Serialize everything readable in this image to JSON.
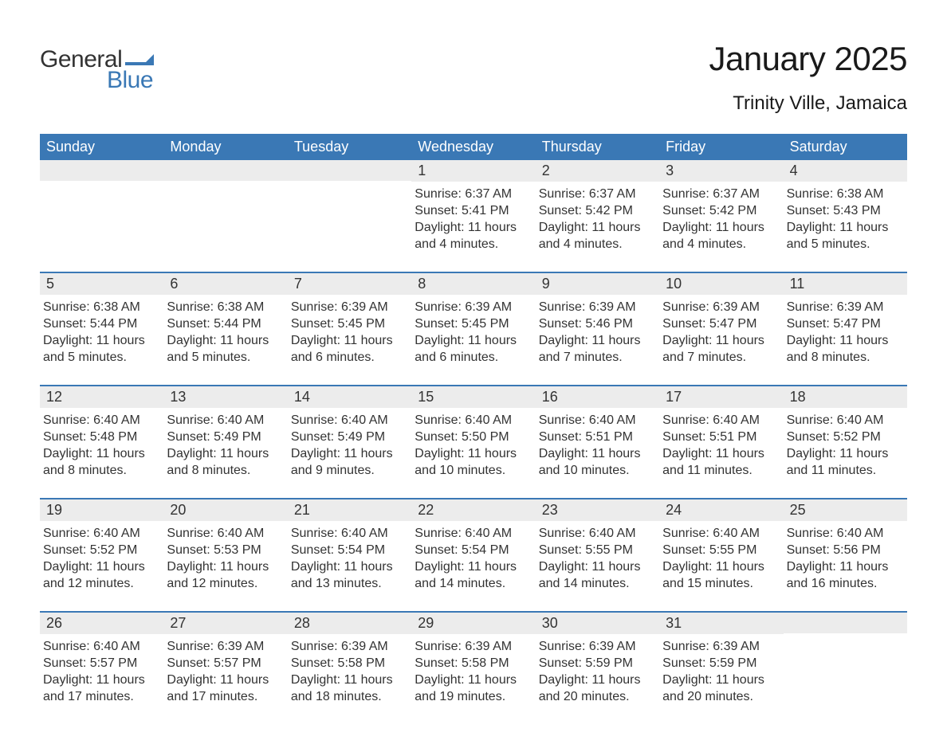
{
  "logo": {
    "text1": "General",
    "text2": "Blue",
    "flag_color": "#3a78b5"
  },
  "title": "January 2025",
  "subtitle": "Trinity Ville, Jamaica",
  "colors": {
    "header_bg": "#3a78b5",
    "header_text": "#ffffff",
    "daynum_bg": "#ececec",
    "body_text": "#333333",
    "week_divider": "#3a78b5",
    "page_bg": "#ffffff"
  },
  "fonts": {
    "title_size_pt": 32,
    "subtitle_size_pt": 18,
    "weekday_size_pt": 14,
    "daynum_size_pt": 14,
    "body_size_pt": 12
  },
  "weekdays": [
    "Sunday",
    "Monday",
    "Tuesday",
    "Wednesday",
    "Thursday",
    "Friday",
    "Saturday"
  ],
  "weeks": [
    [
      {
        "day": "",
        "sunrise": "",
        "sunset": "",
        "daylight": ""
      },
      {
        "day": "",
        "sunrise": "",
        "sunset": "",
        "daylight": ""
      },
      {
        "day": "",
        "sunrise": "",
        "sunset": "",
        "daylight": ""
      },
      {
        "day": "1",
        "sunrise": "Sunrise: 6:37 AM",
        "sunset": "Sunset: 5:41 PM",
        "daylight": "Daylight: 11 hours and 4 minutes."
      },
      {
        "day": "2",
        "sunrise": "Sunrise: 6:37 AM",
        "sunset": "Sunset: 5:42 PM",
        "daylight": "Daylight: 11 hours and 4 minutes."
      },
      {
        "day": "3",
        "sunrise": "Sunrise: 6:37 AM",
        "sunset": "Sunset: 5:42 PM",
        "daylight": "Daylight: 11 hours and 4 minutes."
      },
      {
        "day": "4",
        "sunrise": "Sunrise: 6:38 AM",
        "sunset": "Sunset: 5:43 PM",
        "daylight": "Daylight: 11 hours and 5 minutes."
      }
    ],
    [
      {
        "day": "5",
        "sunrise": "Sunrise: 6:38 AM",
        "sunset": "Sunset: 5:44 PM",
        "daylight": "Daylight: 11 hours and 5 minutes."
      },
      {
        "day": "6",
        "sunrise": "Sunrise: 6:38 AM",
        "sunset": "Sunset: 5:44 PM",
        "daylight": "Daylight: 11 hours and 5 minutes."
      },
      {
        "day": "7",
        "sunrise": "Sunrise: 6:39 AM",
        "sunset": "Sunset: 5:45 PM",
        "daylight": "Daylight: 11 hours and 6 minutes."
      },
      {
        "day": "8",
        "sunrise": "Sunrise: 6:39 AM",
        "sunset": "Sunset: 5:45 PM",
        "daylight": "Daylight: 11 hours and 6 minutes."
      },
      {
        "day": "9",
        "sunrise": "Sunrise: 6:39 AM",
        "sunset": "Sunset: 5:46 PM",
        "daylight": "Daylight: 11 hours and 7 minutes."
      },
      {
        "day": "10",
        "sunrise": "Sunrise: 6:39 AM",
        "sunset": "Sunset: 5:47 PM",
        "daylight": "Daylight: 11 hours and 7 minutes."
      },
      {
        "day": "11",
        "sunrise": "Sunrise: 6:39 AM",
        "sunset": "Sunset: 5:47 PM",
        "daylight": "Daylight: 11 hours and 8 minutes."
      }
    ],
    [
      {
        "day": "12",
        "sunrise": "Sunrise: 6:40 AM",
        "sunset": "Sunset: 5:48 PM",
        "daylight": "Daylight: 11 hours and 8 minutes."
      },
      {
        "day": "13",
        "sunrise": "Sunrise: 6:40 AM",
        "sunset": "Sunset: 5:49 PM",
        "daylight": "Daylight: 11 hours and 8 minutes."
      },
      {
        "day": "14",
        "sunrise": "Sunrise: 6:40 AM",
        "sunset": "Sunset: 5:49 PM",
        "daylight": "Daylight: 11 hours and 9 minutes."
      },
      {
        "day": "15",
        "sunrise": "Sunrise: 6:40 AM",
        "sunset": "Sunset: 5:50 PM",
        "daylight": "Daylight: 11 hours and 10 minutes."
      },
      {
        "day": "16",
        "sunrise": "Sunrise: 6:40 AM",
        "sunset": "Sunset: 5:51 PM",
        "daylight": "Daylight: 11 hours and 10 minutes."
      },
      {
        "day": "17",
        "sunrise": "Sunrise: 6:40 AM",
        "sunset": "Sunset: 5:51 PM",
        "daylight": "Daylight: 11 hours and 11 minutes."
      },
      {
        "day": "18",
        "sunrise": "Sunrise: 6:40 AM",
        "sunset": "Sunset: 5:52 PM",
        "daylight": "Daylight: 11 hours and 11 minutes."
      }
    ],
    [
      {
        "day": "19",
        "sunrise": "Sunrise: 6:40 AM",
        "sunset": "Sunset: 5:52 PM",
        "daylight": "Daylight: 11 hours and 12 minutes."
      },
      {
        "day": "20",
        "sunrise": "Sunrise: 6:40 AM",
        "sunset": "Sunset: 5:53 PM",
        "daylight": "Daylight: 11 hours and 12 minutes."
      },
      {
        "day": "21",
        "sunrise": "Sunrise: 6:40 AM",
        "sunset": "Sunset: 5:54 PM",
        "daylight": "Daylight: 11 hours and 13 minutes."
      },
      {
        "day": "22",
        "sunrise": "Sunrise: 6:40 AM",
        "sunset": "Sunset: 5:54 PM",
        "daylight": "Daylight: 11 hours and 14 minutes."
      },
      {
        "day": "23",
        "sunrise": "Sunrise: 6:40 AM",
        "sunset": "Sunset: 5:55 PM",
        "daylight": "Daylight: 11 hours and 14 minutes."
      },
      {
        "day": "24",
        "sunrise": "Sunrise: 6:40 AM",
        "sunset": "Sunset: 5:55 PM",
        "daylight": "Daylight: 11 hours and 15 minutes."
      },
      {
        "day": "25",
        "sunrise": "Sunrise: 6:40 AM",
        "sunset": "Sunset: 5:56 PM",
        "daylight": "Daylight: 11 hours and 16 minutes."
      }
    ],
    [
      {
        "day": "26",
        "sunrise": "Sunrise: 6:40 AM",
        "sunset": "Sunset: 5:57 PM",
        "daylight": "Daylight: 11 hours and 17 minutes."
      },
      {
        "day": "27",
        "sunrise": "Sunrise: 6:39 AM",
        "sunset": "Sunset: 5:57 PM",
        "daylight": "Daylight: 11 hours and 17 minutes."
      },
      {
        "day": "28",
        "sunrise": "Sunrise: 6:39 AM",
        "sunset": "Sunset: 5:58 PM",
        "daylight": "Daylight: 11 hours and 18 minutes."
      },
      {
        "day": "29",
        "sunrise": "Sunrise: 6:39 AM",
        "sunset": "Sunset: 5:58 PM",
        "daylight": "Daylight: 11 hours and 19 minutes."
      },
      {
        "day": "30",
        "sunrise": "Sunrise: 6:39 AM",
        "sunset": "Sunset: 5:59 PM",
        "daylight": "Daylight: 11 hours and 20 minutes."
      },
      {
        "day": "31",
        "sunrise": "Sunrise: 6:39 AM",
        "sunset": "Sunset: 5:59 PM",
        "daylight": "Daylight: 11 hours and 20 minutes."
      },
      {
        "day": "",
        "sunrise": "",
        "sunset": "",
        "daylight": ""
      }
    ]
  ]
}
